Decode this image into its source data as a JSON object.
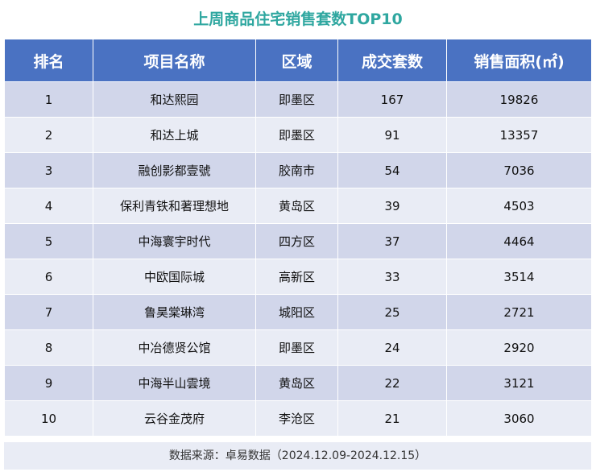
{
  "title": "上周商品住宅销售套数TOP10",
  "chart_data": {
    "type": "table",
    "columns": [
      "排名",
      "项目名称",
      "区域",
      "成交套数",
      "销售面积(㎡)"
    ],
    "rows": [
      [
        "1",
        "和达熙园",
        "即墨区",
        "167",
        "19826"
      ],
      [
        "2",
        "和达上城",
        "即墨区",
        "91",
        "13357"
      ],
      [
        "3",
        "融创影都壹號",
        "胶南市",
        "54",
        "7036"
      ],
      [
        "4",
        "保利青铁和著理想地",
        "黄岛区",
        "39",
        "4503"
      ],
      [
        "5",
        "中海寰宇时代",
        "四方区",
        "37",
        "4464"
      ],
      [
        "6",
        "中欧国际城",
        "高新区",
        "33",
        "3514"
      ],
      [
        "7",
        "鲁昊棠琳湾",
        "城阳区",
        "25",
        "2721"
      ],
      [
        "8",
        "中冶德贤公馆",
        "即墨区",
        "24",
        "2920"
      ],
      [
        "9",
        "中海半山雲境",
        "黄岛区",
        "22",
        "3121"
      ],
      [
        "10",
        "云谷金茂府",
        "李沧区",
        "21",
        "3060"
      ]
    ]
  },
  "source": "数据来源：卓易数据（2024.12.09-2024.12.15）",
  "colors": {
    "title": "#2fa7a0",
    "header_bg": "#4a72c2",
    "row_odd": "#d1d6ea",
    "row_even": "#e9ecf5"
  }
}
